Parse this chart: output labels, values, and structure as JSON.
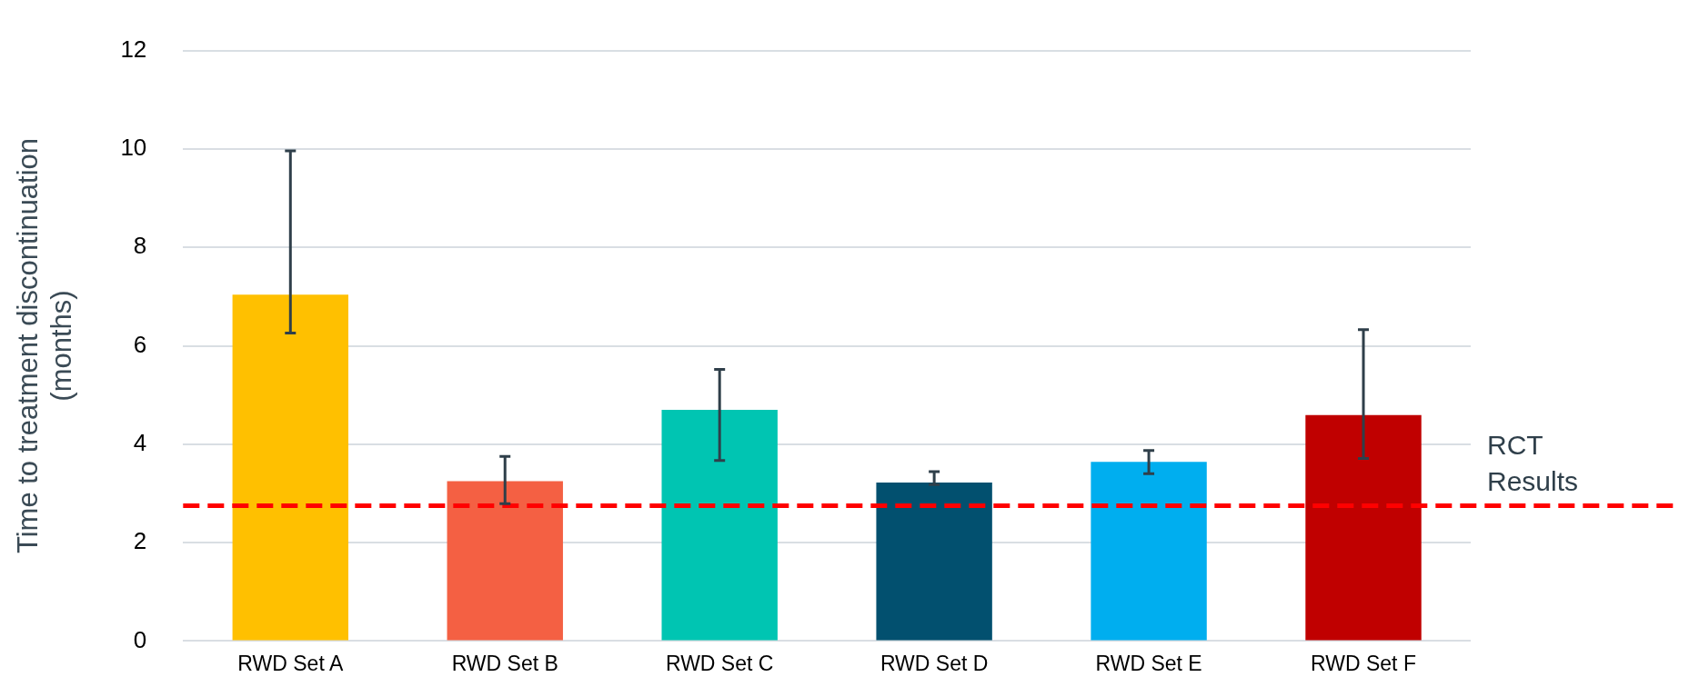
{
  "chart_data": {
    "type": "bar",
    "ylabel": "Time to treatment discontinuation\n(months)",
    "categories": [
      "RWD Set A",
      "RWD Set B",
      "RWD Set C",
      "RWD Set D",
      "RWD Set E",
      "RWD Set F"
    ],
    "values": [
      7.04,
      3.25,
      4.7,
      3.22,
      3.64,
      4.59
    ],
    "colors": [
      "#ffc000",
      "#f46043",
      "#00c5b2",
      "#02506f",
      "#00aeef",
      "#c00000"
    ],
    "errors": [
      [
        6.26,
        9.96
      ],
      [
        2.79,
        3.75
      ],
      [
        3.67,
        5.52
      ],
      [
        3.18,
        3.44
      ],
      [
        3.4,
        3.87
      ],
      [
        3.71,
        6.33
      ]
    ],
    "ylim": [
      0,
      12
    ],
    "yticks": [
      0,
      2,
      4,
      6,
      8,
      10,
      12
    ],
    "grid": "y",
    "ref_lines": [
      {
        "axis": "y",
        "value": 2.75,
        "label": "RCT\nResults",
        "color": "#ff0000",
        "line_style": "dashed"
      }
    ]
  }
}
